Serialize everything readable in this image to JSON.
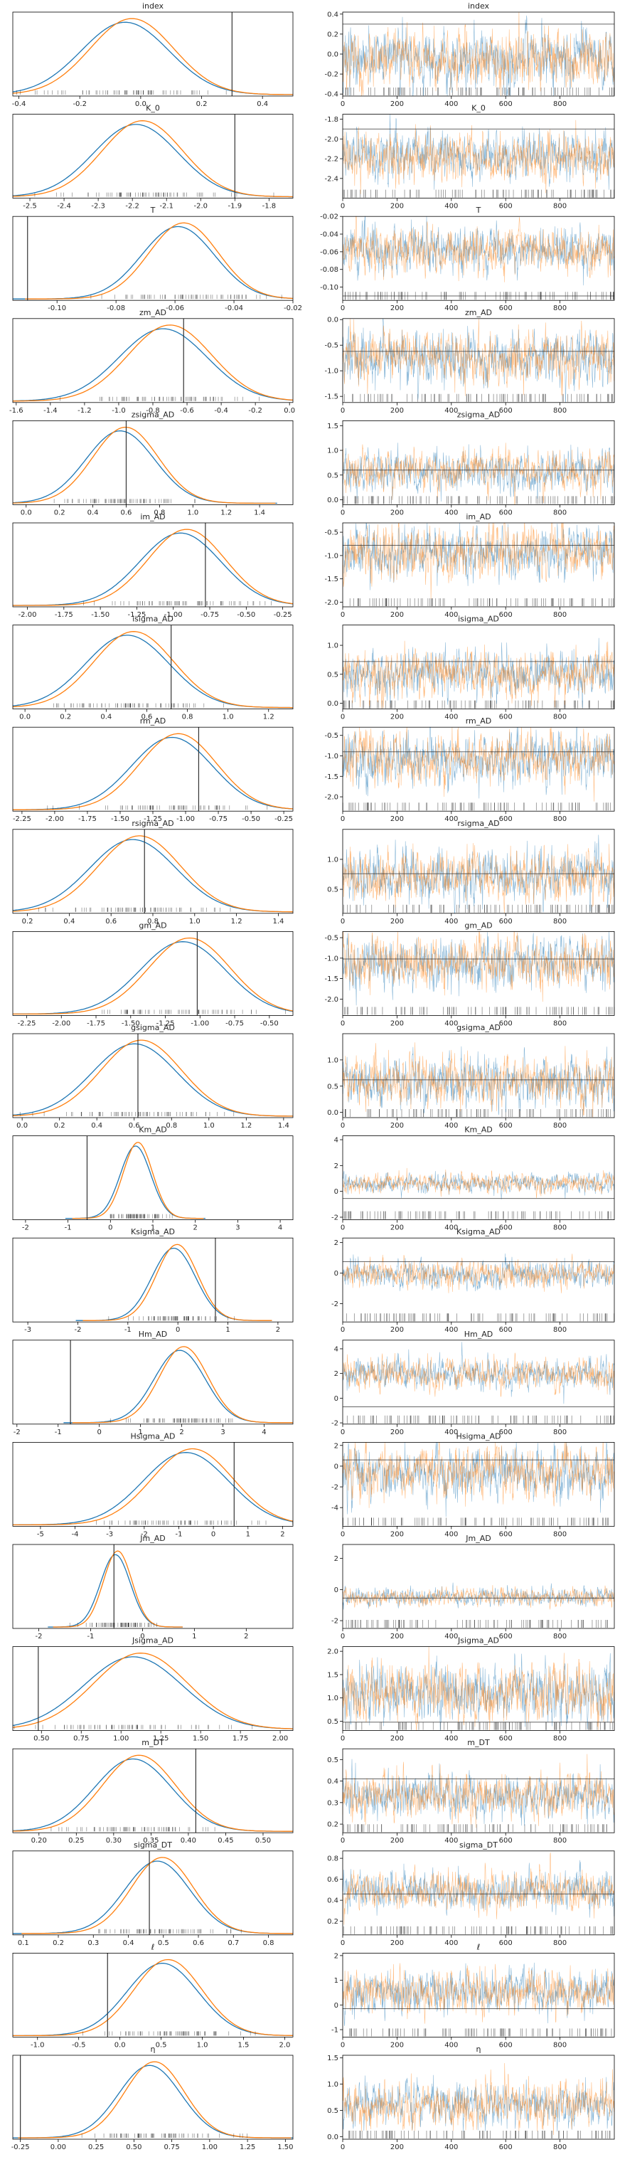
{
  "figure": {
    "kind": "trace plot",
    "colors": {
      "chain0": "#1f77b4",
      "chain1": "#ff7f0e",
      "ref_line": "#333333",
      "axes": "#000000"
    }
  },
  "chart_data": [
    {
      "title": "index",
      "type": "line",
      "panel": "density",
      "xlim": [
        -0.42,
        0.5
      ],
      "xticks": [
        "-0.4",
        "-0.2",
        "0.0",
        "0.2",
        "0.4"
      ],
      "xtick_values": [
        -0.4,
        -0.2,
        0,
        0.2,
        0.4
      ],
      "mean": -0.04,
      "sd": 0.14,
      "ref": 0.3
    },
    {
      "title": "index",
      "type": "line",
      "panel": "trace",
      "ylim": [
        -0.42,
        0.42
      ],
      "yticks": [
        "-0.4",
        "-0.2",
        "0.0",
        "0.2",
        "0.4"
      ],
      "ytick_values": [
        -0.4,
        -0.2,
        0,
        0.2,
        0.4
      ],
      "xticks": [
        "0",
        "200",
        "400",
        "600",
        "800"
      ],
      "draws": 1000,
      "mean": -0.04,
      "sd": 0.14,
      "ref": 0.3
    },
    {
      "title": "K_0",
      "type": "line",
      "panel": "density",
      "xlim": [
        -2.55,
        -1.73
      ],
      "xticks": [
        "-2.5",
        "-2.4",
        "-2.3",
        "-2.2",
        "-2.1",
        "-2.0",
        "-1.9",
        "-1.8"
      ],
      "xtick_values": [
        -2.5,
        -2.4,
        -2.3,
        -2.2,
        -2.1,
        -2.0,
        -1.9,
        -1.8
      ],
      "mean": -2.18,
      "sd": 0.12,
      "ref": -1.9
    },
    {
      "title": "K_0",
      "type": "line",
      "panel": "trace",
      "ylim": [
        -2.6,
        -1.75
      ],
      "yticks": [
        "-1.8",
        "-2.0",
        "-2.2",
        "-2.4"
      ],
      "ytick_values": [
        -1.8,
        -2.0,
        -2.2,
        -2.4
      ],
      "xticks": [
        "0",
        "200",
        "400",
        "600",
        "800"
      ],
      "draws": 1000,
      "mean": -2.18,
      "sd": 0.12,
      "ref": -1.9
    },
    {
      "title": "T",
      "type": "line",
      "panel": "density",
      "xlim": [
        -0.115,
        -0.02
      ],
      "xticks": [
        "-0.10",
        "-0.08",
        "-0.06",
        "-0.04",
        "-0.02"
      ],
      "xtick_values": [
        -0.1,
        -0.08,
        -0.06,
        -0.04,
        -0.02
      ],
      "mean": -0.058,
      "sd": 0.012,
      "ref": -0.11
    },
    {
      "title": "T",
      "type": "line",
      "panel": "trace",
      "ylim": [
        -0.115,
        -0.02
      ],
      "yticks": [
        "-0.02",
        "-0.04",
        "-0.06",
        "-0.08",
        "-0.10"
      ],
      "ytick_values": [
        -0.02,
        -0.04,
        -0.06,
        -0.08,
        -0.1
      ],
      "xticks": [
        "0",
        "200",
        "400",
        "600",
        "800"
      ],
      "draws": 1000,
      "mean": -0.058,
      "sd": 0.012,
      "ref": -0.11
    },
    {
      "title": "zm_AD",
      "type": "line",
      "panel": "density",
      "xlim": [
        -1.62,
        0.02
      ],
      "xticks": [
        "-1.6",
        "-1.4",
        "-1.2",
        "-1.0",
        "-0.8",
        "-0.6",
        "-0.4",
        "-0.2",
        "0.0"
      ],
      "xtick_values": [
        -1.6,
        -1.4,
        -1.2,
        -1.0,
        -0.8,
        -0.6,
        -0.4,
        -0.2,
        0.0
      ],
      "mean": -0.72,
      "sd": 0.25,
      "ref": -0.62
    },
    {
      "title": "zm_AD",
      "type": "line",
      "panel": "trace",
      "ylim": [
        -1.62,
        0.02
      ],
      "yticks": [
        "0.0",
        "-0.5",
        "-1.0",
        "-1.5"
      ],
      "ytick_values": [
        0,
        -0.5,
        -1.0,
        -1.5
      ],
      "xticks": [
        "0",
        "200",
        "400",
        "600",
        "800"
      ],
      "draws": 1000,
      "mean": -0.72,
      "sd": 0.25,
      "ref": -0.62
    },
    {
      "title": "zsigma_AD",
      "type": "line",
      "panel": "density",
      "xlim": [
        -0.08,
        1.6
      ],
      "xticks": [
        "0.0",
        "0.2",
        "0.4",
        "0.6",
        "0.8",
        "1.0",
        "1.2",
        "1.4"
      ],
      "xtick_values": [
        0,
        0.2,
        0.4,
        0.6,
        0.8,
        1.0,
        1.2,
        1.4
      ],
      "mean": 0.58,
      "sd": 0.2,
      "ref": 0.6
    },
    {
      "title": "zsigma_AD",
      "type": "line",
      "panel": "trace",
      "ylim": [
        -0.1,
        1.6
      ],
      "yticks": [
        "0.0",
        "0.5",
        "1.0",
        "1.5"
      ],
      "ytick_values": [
        0,
        0.5,
        1.0,
        1.5
      ],
      "xticks": [
        "0",
        "200",
        "400",
        "600",
        "800"
      ],
      "draws": 1000,
      "mean": 0.58,
      "sd": 0.2,
      "ref": 0.6
    },
    {
      "title": "im_AD",
      "type": "line",
      "panel": "density",
      "xlim": [
        -2.1,
        -0.18
      ],
      "xticks": [
        "-2.00",
        "-1.75",
        "-1.50",
        "-1.25",
        "-1.00",
        "-0.75",
        "-0.50",
        "-0.25"
      ],
      "xtick_values": [
        -2.0,
        -1.75,
        -1.5,
        -1.25,
        -1.0,
        -0.75,
        -0.5,
        -0.25
      ],
      "mean": -0.93,
      "sd": 0.27,
      "ref": -0.78
    },
    {
      "title": "im_AD",
      "type": "line",
      "panel": "trace",
      "ylim": [
        -2.1,
        -0.3
      ],
      "yticks": [
        "-0.5",
        "-1.0",
        "-1.5",
        "-2.0"
      ],
      "ytick_values": [
        -0.5,
        -1.0,
        -1.5,
        -2.0
      ],
      "xticks": [
        "0",
        "200",
        "400",
        "600",
        "800"
      ],
      "draws": 1000,
      "mean": -0.93,
      "sd": 0.27,
      "ref": -0.78
    },
    {
      "title": "isigma_AD",
      "type": "line",
      "panel": "density",
      "xlim": [
        -0.06,
        1.32
      ],
      "xticks": [
        "0.0",
        "0.2",
        "0.4",
        "0.6",
        "0.8",
        "1.0",
        "1.2"
      ],
      "xtick_values": [
        0,
        0.2,
        0.4,
        0.6,
        0.8,
        1.0,
        1.2
      ],
      "mean": 0.52,
      "sd": 0.2,
      "ref": 0.72
    },
    {
      "title": "isigma_AD",
      "type": "line",
      "panel": "trace",
      "ylim": [
        -0.1,
        1.35
      ],
      "yticks": [
        "0.0",
        "0.5",
        "1.0"
      ],
      "ytick_values": [
        0,
        0.5,
        1.0
      ],
      "xticks": [
        "0",
        "200",
        "400",
        "600",
        "800"
      ],
      "draws": 1000,
      "mean": 0.52,
      "sd": 0.2,
      "ref": 0.72
    },
    {
      "title": "rm_AD",
      "type": "line",
      "panel": "density",
      "xlim": [
        -2.32,
        -0.18
      ],
      "xticks": [
        "-2.25",
        "-2.00",
        "-1.75",
        "-1.50",
        "-1.25",
        "-1.00",
        "-0.75",
        "-0.50",
        "-0.25"
      ],
      "xtick_values": [
        -2.25,
        -2.0,
        -1.75,
        -1.5,
        -1.25,
        -1.0,
        -0.75,
        -0.5,
        -0.25
      ],
      "mean": -1.08,
      "sd": 0.3,
      "ref": -0.9
    },
    {
      "title": "rm_AD",
      "type": "line",
      "panel": "trace",
      "ylim": [
        -2.35,
        -0.3
      ],
      "yticks": [
        "-0.5",
        "-1.0",
        "-1.5",
        "-2.0"
      ],
      "ytick_values": [
        -0.5,
        -1.0,
        -1.5,
        -2.0
      ],
      "xticks": [
        "0",
        "200",
        "400",
        "600",
        "800"
      ],
      "draws": 1000,
      "mean": -1.08,
      "sd": 0.3,
      "ref": -0.9
    },
    {
      "title": "rsigma_AD",
      "type": "line",
      "panel": "density",
      "xlim": [
        0.13,
        1.47
      ],
      "xticks": [
        "0.2",
        "0.4",
        "0.6",
        "0.8",
        "1.0",
        "1.2",
        "1.4"
      ],
      "xtick_values": [
        0.2,
        0.4,
        0.6,
        0.8,
        1.0,
        1.2,
        1.4
      ],
      "mean": 0.72,
      "sd": 0.2,
      "ref": 0.76
    },
    {
      "title": "rsigma_AD",
      "type": "line",
      "panel": "trace",
      "ylim": [
        0.1,
        1.5
      ],
      "yticks": [
        "0.5",
        "1.0"
      ],
      "ytick_values": [
        0.5,
        1.0
      ],
      "xticks": [
        "0",
        "200",
        "400",
        "600",
        "800"
      ],
      "draws": 1000,
      "mean": 0.72,
      "sd": 0.2,
      "ref": 0.76
    },
    {
      "title": "gm_AD",
      "type": "line",
      "panel": "density",
      "xlim": [
        -2.35,
        -0.33
      ],
      "xticks": [
        "-2.25",
        "-2.00",
        "-1.75",
        "-1.50",
        "-1.25",
        "-1.00",
        "-0.75",
        "-0.50"
      ],
      "xtick_values": [
        -2.25,
        -2.0,
        -1.75,
        -1.5,
        -1.25,
        -1.0,
        -0.75,
        -0.5
      ],
      "mean": -1.1,
      "sd": 0.3,
      "ref": -1.02
    },
    {
      "title": "gm_AD",
      "type": "line",
      "panel": "trace",
      "ylim": [
        -2.4,
        -0.35
      ],
      "yticks": [
        "-0.5",
        "-1.0",
        "-1.5",
        "-2.0"
      ],
      "ytick_values": [
        -0.5,
        -1.0,
        -1.5,
        -2.0
      ],
      "xticks": [
        "0",
        "200",
        "400",
        "600",
        "800"
      ],
      "draws": 1000,
      "mean": -1.1,
      "sd": 0.3,
      "ref": -1.02
    },
    {
      "title": "gsigma_AD",
      "type": "line",
      "panel": "density",
      "xlim": [
        -0.05,
        1.45
      ],
      "xticks": [
        "0.0",
        "0.2",
        "0.4",
        "0.6",
        "0.8",
        "1.0",
        "1.2",
        "1.4"
      ],
      "xtick_values": [
        0,
        0.2,
        0.4,
        0.6,
        0.8,
        1.0,
        1.2,
        1.4
      ],
      "mean": 0.62,
      "sd": 0.22,
      "ref": 0.62
    },
    {
      "title": "gsigma_AD",
      "type": "line",
      "panel": "trace",
      "ylim": [
        -0.1,
        1.5
      ],
      "yticks": [
        "0.0",
        "0.5",
        "1.0"
      ],
      "ytick_values": [
        0,
        0.5,
        1.0
      ],
      "xticks": [
        "0",
        "200",
        "400",
        "600",
        "800"
      ],
      "draws": 1000,
      "mean": 0.62,
      "sd": 0.22,
      "ref": 0.62
    },
    {
      "title": "Km_AD",
      "type": "line",
      "panel": "density",
      "xlim": [
        -2.3,
        4.3
      ],
      "xticks": [
        "-2",
        "-1",
        "0",
        "1",
        "2",
        "3",
        "4"
      ],
      "xtick_values": [
        -2,
        -1,
        0,
        1,
        2,
        3,
        4
      ],
      "mean": 0.62,
      "sd": 0.35,
      "ref": -0.55
    },
    {
      "title": "Km_AD",
      "type": "line",
      "panel": "trace",
      "ylim": [
        -2.2,
        4.3
      ],
      "yticks": [
        "4",
        "2",
        "0",
        "-2"
      ],
      "ytick_values": [
        4,
        2,
        0,
        -2
      ],
      "xticks": [
        "0",
        "200",
        "400",
        "600",
        "800"
      ],
      "draws": 1000,
      "mean": 0.62,
      "sd": 0.35,
      "ref": -0.55
    },
    {
      "title": "Ksigma_AD",
      "type": "line",
      "panel": "density",
      "xlim": [
        -3.3,
        2.3
      ],
      "xticks": [
        "-3",
        "-2",
        "-1",
        "0",
        "1",
        "2"
      ],
      "xtick_values": [
        -3,
        -2,
        -1,
        0,
        1,
        2
      ],
      "mean": -0.05,
      "sd": 0.42,
      "ref": 0.75
    },
    {
      "title": "Ksigma_AD",
      "type": "line",
      "panel": "trace",
      "ylim": [
        -3.2,
        2.3
      ],
      "yticks": [
        "2",
        "0",
        "-2"
      ],
      "ytick_values": [
        2,
        0,
        -2
      ],
      "xticks": [
        "0",
        "200",
        "400",
        "600",
        "800"
      ],
      "draws": 1000,
      "mean": -0.05,
      "sd": 0.42,
      "ref": 0.75
    },
    {
      "title": "Hm_AD",
      "type": "line",
      "panel": "density",
      "xlim": [
        -2.1,
        4.7
      ],
      "xticks": [
        "-2",
        "-1",
        "0",
        "1",
        "2",
        "3",
        "4"
      ],
      "xtick_values": [
        -2,
        -1,
        0,
        1,
        2,
        3,
        4
      ],
      "mean": 2.0,
      "sd": 0.6,
      "ref": -0.7
    },
    {
      "title": "Hm_AD",
      "type": "line",
      "panel": "trace",
      "ylim": [
        -2.1,
        4.7
      ],
      "yticks": [
        "4",
        "2",
        "0",
        "-2"
      ],
      "ytick_values": [
        4,
        2,
        0,
        -2
      ],
      "xticks": [
        "0",
        "200",
        "400",
        "600",
        "800"
      ],
      "draws": 1000,
      "mean": 2.0,
      "sd": 0.6,
      "ref": -0.7
    },
    {
      "title": "Hsigma_AD",
      "type": "line",
      "panel": "density",
      "xlim": [
        -5.8,
        2.3
      ],
      "xticks": [
        "-5",
        "-4",
        "-3",
        "-2",
        "-1",
        "0",
        "1",
        "2"
      ],
      "xtick_values": [
        -5,
        -4,
        -3,
        -2,
        -1,
        0,
        1,
        2
      ],
      "mean": -0.7,
      "sd": 1.2,
      "ref": 0.6
    },
    {
      "title": "Hsigma_AD",
      "type": "line",
      "panel": "trace",
      "ylim": [
        -5.8,
        2.3
      ],
      "yticks": [
        "2",
        "0",
        "-2",
        "-4"
      ],
      "ytick_values": [
        2,
        0,
        -2,
        -4
      ],
      "xticks": [
        "0",
        "200",
        "400",
        "600",
        "800"
      ],
      "draws": 1000,
      "mean": -0.7,
      "sd": 1.2,
      "ref": 0.6
    },
    {
      "title": "Jm_AD",
      "type": "line",
      "panel": "density",
      "xlim": [
        -2.5,
        2.9
      ],
      "xticks": [
        "-2",
        "-1",
        "0",
        "1",
        "2"
      ],
      "xtick_values": [
        -2,
        -1,
        0,
        1,
        2
      ],
      "mean": -0.5,
      "sd": 0.28,
      "ref": -0.55
    },
    {
      "title": "Jm_AD",
      "type": "line",
      "panel": "trace",
      "ylim": [
        -2.5,
        2.9
      ],
      "yticks": [
        "2",
        "0",
        "-2"
      ],
      "ytick_values": [
        2,
        0,
        -2
      ],
      "xticks": [
        "0",
        "200",
        "400",
        "600",
        "800"
      ],
      "draws": 1000,
      "mean": -0.5,
      "sd": 0.28,
      "ref": -0.55
    },
    {
      "title": "Jsigma_AD",
      "type": "line",
      "panel": "density",
      "xlim": [
        0.32,
        2.08
      ],
      "xticks": [
        "0.50",
        "0.75",
        "1.00",
        "1.25",
        "1.50",
        "1.75",
        "2.00"
      ],
      "xtick_values": [
        0.5,
        0.75,
        1.0,
        1.25,
        1.5,
        1.75,
        2.0
      ],
      "mean": 1.1,
      "sd": 0.3,
      "ref": 0.48
    },
    {
      "title": "Jsigma_AD",
      "type": "line",
      "panel": "trace",
      "ylim": [
        0.3,
        2.1
      ],
      "yticks": [
        "2.0",
        "1.5",
        "1.0",
        "0.5"
      ],
      "ytick_values": [
        2.0,
        1.5,
        1.0,
        0.5
      ],
      "xticks": [
        "0",
        "200",
        "400",
        "600",
        "800"
      ],
      "draws": 1000,
      "mean": 1.1,
      "sd": 0.3,
      "ref": 0.48
    },
    {
      "title": "m_DT",
      "type": "line",
      "panel": "density",
      "xlim": [
        0.165,
        0.54
      ],
      "xticks": [
        "0.20",
        "0.25",
        "0.30",
        "0.35",
        "0.40",
        "0.45",
        "0.50"
      ],
      "xtick_values": [
        0.2,
        0.25,
        0.3,
        0.35,
        0.4,
        0.45,
        0.5
      ],
      "mean": 0.33,
      "sd": 0.05,
      "ref": 0.41
    },
    {
      "title": "m_DT",
      "type": "line",
      "panel": "trace",
      "ylim": [
        0.16,
        0.55
      ],
      "yticks": [
        "0.5",
        "0.4",
        "0.3",
        "0.2"
      ],
      "ytick_values": [
        0.5,
        0.4,
        0.3,
        0.2
      ],
      "xticks": [
        "0",
        "200",
        "400",
        "600",
        "800"
      ],
      "draws": 1000,
      "mean": 0.33,
      "sd": 0.05,
      "ref": 0.41
    },
    {
      "title": "sigma_DT",
      "type": "line",
      "panel": "density",
      "xlim": [
        0.07,
        0.87
      ],
      "xticks": [
        "0.1",
        "0.2",
        "0.3",
        "0.4",
        "0.5",
        "0.6",
        "0.7",
        "0.8"
      ],
      "xtick_values": [
        0.1,
        0.2,
        0.3,
        0.4,
        0.5,
        0.6,
        0.7,
        0.8
      ],
      "mean": 0.49,
      "sd": 0.09,
      "ref": 0.46
    },
    {
      "title": "sigma_DT",
      "type": "line",
      "panel": "trace",
      "ylim": [
        0.07,
        0.87
      ],
      "yticks": [
        "0.8",
        "0.6",
        "0.4",
        "0.2"
      ],
      "ytick_values": [
        0.8,
        0.6,
        0.4,
        0.2
      ],
      "xticks": [
        "0",
        "200",
        "400",
        "600",
        "800"
      ],
      "draws": 1000,
      "mean": 0.49,
      "sd": 0.09,
      "ref": 0.46
    },
    {
      "title": "ℓ",
      "type": "line",
      "panel": "density",
      "xlim": [
        -1.3,
        2.1
      ],
      "xticks": [
        "-1.0",
        "-0.5",
        "0.0",
        "0.5",
        "1.0",
        "1.5",
        "2.0"
      ],
      "xtick_values": [
        -1.0,
        -0.5,
        0,
        0.5,
        1.0,
        1.5,
        2.0
      ],
      "mean": 0.55,
      "sd": 0.42,
      "ref": -0.15
    },
    {
      "title": "ℓ",
      "type": "line",
      "panel": "trace",
      "ylim": [
        -1.3,
        2.1
      ],
      "yticks": [
        "2",
        "1",
        "0",
        "-1"
      ],
      "ytick_values": [
        2,
        1,
        0,
        -1
      ],
      "xticks": [
        "0",
        "200",
        "400",
        "600",
        "800"
      ],
      "draws": 1000,
      "mean": 0.55,
      "sd": 0.42,
      "ref": -0.15
    },
    {
      "title": "η",
      "type": "line",
      "panel": "density",
      "xlim": [
        -0.3,
        1.55
      ],
      "xticks": [
        "-0.25",
        "0.00",
        "0.25",
        "0.50",
        "0.75",
        "1.00",
        "1.25",
        "1.50"
      ],
      "xtick_values": [
        -0.25,
        0,
        0.25,
        0.5,
        0.75,
        1.0,
        1.25,
        1.5
      ],
      "mean": 0.62,
      "sd": 0.2,
      "ref": -0.25
    },
    {
      "title": "η",
      "type": "line",
      "panel": "trace",
      "ylim": [
        -0.05,
        1.55
      ],
      "yticks": [
        "1.5",
        "1.0",
        "0.5",
        "0.0"
      ],
      "ytick_values": [
        1.5,
        1.0,
        0.5,
        0
      ],
      "xticks": [
        "0",
        "200",
        "400",
        "600",
        "800"
      ],
      "draws": 1000,
      "mean": 0.62,
      "sd": 0.2,
      "ref": -0.25
    }
  ]
}
